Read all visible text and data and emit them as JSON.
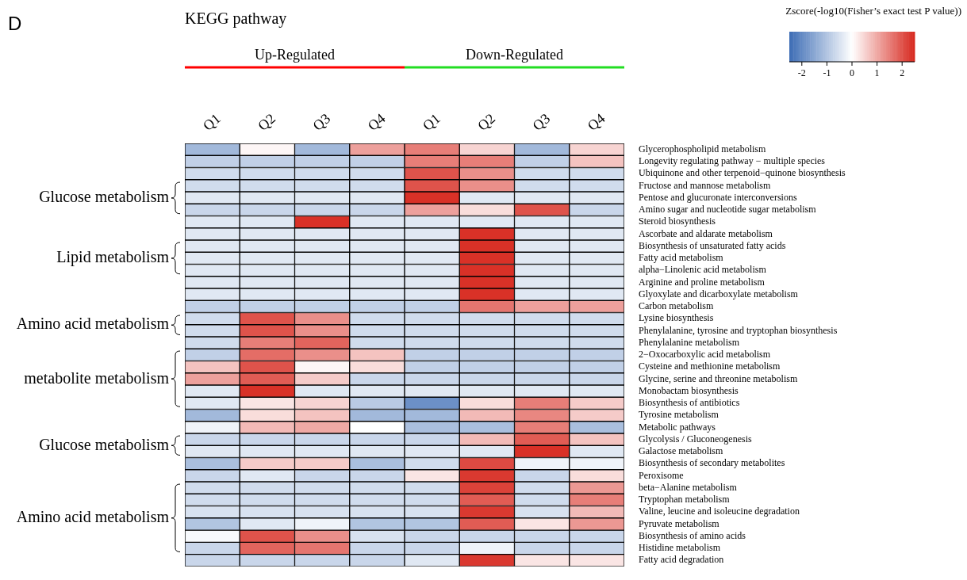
{
  "chart_data": {
    "type": "heatmap",
    "title": "KEGG pathway",
    "clabel": "Zscore(-log10(Fisher’s exact test P value))",
    "annotations": [
      "D",
      "Up-Regulated",
      "Down-Regulated",
      "Glucose metabolism",
      "Lipid metabolism",
      "Amino acid metabolism",
      "metabolite metabolism",
      "Glucose metabolism",
      "Amino acid metabolism"
    ],
    "categories": [
      "Q1",
      "Q2",
      "Q3",
      "Q4",
      "Q1",
      "Q2",
      "Q3",
      "Q4"
    ],
    "y_categories": [
      "Glycerophospholipid metabolism",
      "Longevity regulating pathway − multiple species",
      "Ubiquinone and other terpenoid−quinone biosynthesis",
      "Fructose and mannose metabolism",
      "Pentose and glucuronate interconversions",
      "Amino sugar and nucleotide sugar metabolism",
      "Steroid biosynthesis",
      "Ascorbate and aldarate metabolism",
      "Biosynthesis of unsaturated fatty acids",
      "Fatty acid metabolism",
      "alpha−Linolenic acid metabolism",
      "Arginine and proline metabolism",
      "Glyoxylate and dicarboxylate metabolism",
      "Carbon metabolism",
      "Lysine biosynthesis",
      "Phenylalanine, tyrosine and tryptophan biosynthesis",
      "Phenylalanine metabolism",
      "2−Oxocarboxylic acid metabolism",
      "Cysteine and methionine metabolism",
      "Glycine, serine and threonine metabolism",
      "Monobactam biosynthesis",
      "Biosynthesis of antibiotics",
      "Tyrosine metabolism",
      "Metabolic pathways",
      "Glycolysis / Gluconeogenesis",
      "Galactose metabolism",
      "Biosynthesis of secondary metabolites",
      "Peroxisome",
      "beta−Alanine metabolism",
      "Tryptophan metabolism",
      "Valine, leucine and isoleucine degradation",
      "Pyruvate metabolism",
      "Biosynthesis of amino acids",
      "Histidine metabolism",
      "Fatty acid degradation"
    ],
    "cells": [
      [
        -1.2,
        0.1,
        -1.2,
        1.1,
        1.5,
        0.5,
        -1.2,
        0.5
      ],
      [
        -0.8,
        -0.8,
        -0.8,
        -0.8,
        1.5,
        1.5,
        -0.8,
        0.7
      ],
      [
        -0.6,
        -0.6,
        -0.6,
        -0.6,
        2.0,
        1.3,
        -0.6,
        -0.6
      ],
      [
        -0.6,
        -0.6,
        -0.6,
        -0.6,
        2.0,
        1.3,
        -0.6,
        -0.6
      ],
      [
        -0.4,
        -0.4,
        -0.4,
        -0.4,
        2.4,
        -0.4,
        -0.4,
        -0.4
      ],
      [
        -0.7,
        -0.7,
        -0.7,
        -0.7,
        1.1,
        0.4,
        2.0,
        -0.7
      ],
      [
        -0.4,
        -0.4,
        2.4,
        -0.4,
        -0.4,
        -0.4,
        -0.4,
        -0.4
      ],
      [
        -0.4,
        -0.4,
        -0.4,
        -0.4,
        -0.4,
        2.4,
        -0.4,
        -0.4
      ],
      [
        -0.4,
        -0.4,
        -0.4,
        -0.4,
        -0.4,
        2.4,
        -0.4,
        -0.4
      ],
      [
        -0.4,
        -0.4,
        -0.4,
        -0.4,
        -0.4,
        2.4,
        -0.4,
        -0.4
      ],
      [
        -0.4,
        -0.4,
        -0.4,
        -0.4,
        -0.4,
        2.4,
        -0.4,
        -0.4
      ],
      [
        -0.4,
        -0.4,
        -0.4,
        -0.4,
        -0.4,
        2.4,
        -0.4,
        -0.4
      ],
      [
        -0.4,
        -0.4,
        -0.4,
        -0.4,
        -0.4,
        2.4,
        -0.4,
        -0.4
      ],
      [
        -0.8,
        -0.8,
        -0.8,
        -0.8,
        -0.8,
        1.6,
        1.1,
        1.1
      ],
      [
        -0.6,
        2.0,
        1.3,
        -0.6,
        -0.6,
        -0.6,
        -0.6,
        -0.6
      ],
      [
        -0.6,
        2.0,
        1.3,
        -0.6,
        -0.6,
        -0.6,
        -0.6,
        -0.6
      ],
      [
        -0.6,
        1.5,
        1.8,
        -0.6,
        -0.6,
        -0.6,
        -0.6,
        -0.6
      ],
      [
        -0.8,
        1.7,
        1.3,
        0.7,
        -0.8,
        -0.8,
        -0.8,
        -0.8
      ],
      [
        0.7,
        2.0,
        0.1,
        0.4,
        -0.8,
        -0.8,
        -0.8,
        -0.8
      ],
      [
        1.1,
        1.9,
        0.6,
        -0.7,
        -0.7,
        -0.7,
        -0.7,
        -0.7
      ],
      [
        -0.4,
        2.4,
        -0.4,
        -0.4,
        -0.4,
        -0.4,
        -0.4,
        -0.4
      ],
      [
        -0.4,
        0.3,
        0.5,
        -0.9,
        -1.9,
        0.4,
        1.5,
        0.6
      ],
      [
        -1.2,
        0.4,
        0.7,
        -1.2,
        -1.2,
        0.8,
        1.4,
        0.6
      ],
      [
        -0.2,
        0.8,
        1.0,
        0.0,
        -1.1,
        -1.1,
        1.5,
        -1.1
      ],
      [
        -0.7,
        -0.7,
        -0.7,
        -0.7,
        -0.7,
        0.8,
        1.9,
        0.7
      ],
      [
        -0.4,
        -0.4,
        -0.4,
        -0.4,
        -0.4,
        -0.4,
        2.4,
        -0.4
      ],
      [
        -1.1,
        0.6,
        0.6,
        -1.1,
        -0.6,
        2.1,
        -0.2,
        -0.2
      ],
      [
        -0.7,
        -0.4,
        -0.7,
        -0.7,
        0.3,
        2.3,
        -0.7,
        0.4
      ],
      [
        -0.6,
        -0.6,
        -0.6,
        -0.6,
        -0.6,
        2.2,
        -0.6,
        1.2
      ],
      [
        -0.6,
        -0.6,
        -0.6,
        -0.6,
        -0.6,
        1.9,
        -0.6,
        1.5
      ],
      [
        -0.5,
        -0.5,
        -0.5,
        -0.5,
        -0.5,
        2.3,
        -0.5,
        0.8
      ],
      [
        -1.0,
        -0.4,
        -0.2,
        -1.0,
        -1.0,
        1.9,
        0.3,
        1.2
      ],
      [
        -0.1,
        2.0,
        1.3,
        -0.5,
        -0.7,
        -0.7,
        -0.7,
        -0.7
      ],
      [
        -0.7,
        1.8,
        1.6,
        -0.7,
        -0.7,
        -0.2,
        -0.7,
        -0.7
      ],
      [
        -0.7,
        -0.7,
        -0.7,
        -0.7,
        -0.4,
        2.3,
        0.3,
        0.3
      ]
    ],
    "clim": [
      -2.5,
      2.5
    ],
    "cticks": [
      -2,
      -1,
      0,
      1,
      2
    ]
  }
}
